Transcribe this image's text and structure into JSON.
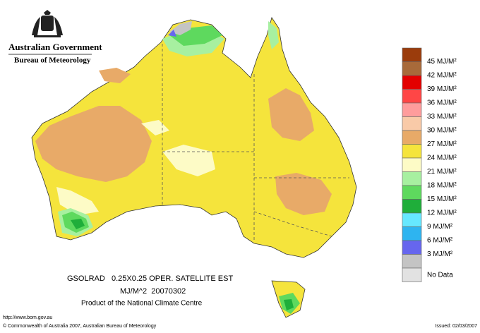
{
  "header": {
    "government": "Australian Government",
    "bureau": "Bureau of Meteorology"
  },
  "legend": {
    "colors": [
      "#9b3c0c",
      "#a86a3a",
      "#e30000",
      "#ff4646",
      "#ff9c9c",
      "#f9caa8",
      "#e8aa68",
      "#f5e43c",
      "#fdfbc6",
      "#a7f0a0",
      "#5ed95e",
      "#1fae3a",
      "#66e8ff",
      "#2eb4f0",
      "#6666ee",
      "#c4c4c4"
    ],
    "labels": [
      "45 MJ/M²",
      "42 MJ/M²",
      "39 MJ/M²",
      "36 MJ/M²",
      "33 MJ/M²",
      "30 MJ/M²",
      "27 MJ/M²",
      "24 MJ/M²",
      "21 MJ/M²",
      "18 MJ/M²",
      "15 MJ/M²",
      "12 MJ/M²",
      "9 MJ/M²",
      "6 MJ/M²",
      "3 MJ/M²"
    ],
    "no_data": {
      "label": "No Data",
      "color": "#e2e2e2"
    }
  },
  "footer": {
    "product": "GSOLRAD   0.25X0.25 OPER. SATELLITE EST",
    "units_date": "MJ/M^2  20070302",
    "centre": "Product of the National Climate Centre",
    "url": "http://www.bom.gov.au",
    "copyright": "© Commonwealth of Australia 2007, Australian Bureau of Meteorology",
    "issued": "Issued: 02/03/2007"
  }
}
